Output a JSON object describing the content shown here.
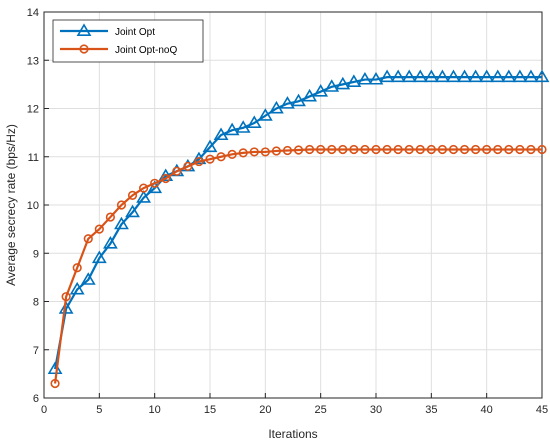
{
  "chart_data": {
    "type": "line",
    "title": "",
    "xlabel": "Iterations",
    "ylabel": "Average secrecy rate (bps/Hz)",
    "xlim": [
      0,
      45
    ],
    "ylim": [
      6,
      14
    ],
    "xticks": [
      "0",
      "5",
      "10",
      "15",
      "20",
      "25",
      "30",
      "35",
      "40",
      "45"
    ],
    "yticks": [
      "6",
      "7",
      "8",
      "9",
      "10",
      "11",
      "12",
      "13",
      "14"
    ],
    "grid": true,
    "legend_position": "top-left",
    "x": [
      1,
      2,
      3,
      4,
      5,
      6,
      7,
      8,
      9,
      10,
      11,
      12,
      13,
      14,
      15,
      16,
      17,
      18,
      19,
      20,
      21,
      22,
      23,
      24,
      25,
      26,
      27,
      28,
      29,
      30,
      31,
      32,
      33,
      34,
      35,
      36,
      37,
      38,
      39,
      40,
      41,
      42,
      43,
      44,
      45
    ],
    "series": [
      {
        "name": "Joint Opt",
        "color": "#0072BD",
        "marker": "triangle",
        "values": [
          6.6,
          7.85,
          8.25,
          8.45,
          8.9,
          9.2,
          9.6,
          9.85,
          10.15,
          10.35,
          10.6,
          10.7,
          10.8,
          10.95,
          11.2,
          11.45,
          11.55,
          11.6,
          11.7,
          11.85,
          12.0,
          12.1,
          12.15,
          12.25,
          12.35,
          12.45,
          12.5,
          12.55,
          12.6,
          12.6,
          12.65,
          12.65,
          12.65,
          12.65,
          12.65,
          12.65,
          12.65,
          12.65,
          12.65,
          12.65,
          12.65,
          12.65,
          12.65,
          12.65,
          12.65
        ]
      },
      {
        "name": "Joint Opt-noQ",
        "color": "#D95319",
        "marker": "circle",
        "values": [
          6.3,
          8.1,
          8.7,
          9.3,
          9.5,
          9.75,
          10.0,
          10.2,
          10.35,
          10.45,
          10.55,
          10.7,
          10.8,
          10.9,
          10.95,
          11.0,
          11.05,
          11.08,
          11.1,
          11.1,
          11.12,
          11.13,
          11.14,
          11.15,
          11.15,
          11.15,
          11.15,
          11.15,
          11.15,
          11.15,
          11.15,
          11.15,
          11.15,
          11.15,
          11.15,
          11.15,
          11.15,
          11.15,
          11.15,
          11.15,
          11.15,
          11.15,
          11.15,
          11.15,
          11.15
        ]
      }
    ]
  }
}
